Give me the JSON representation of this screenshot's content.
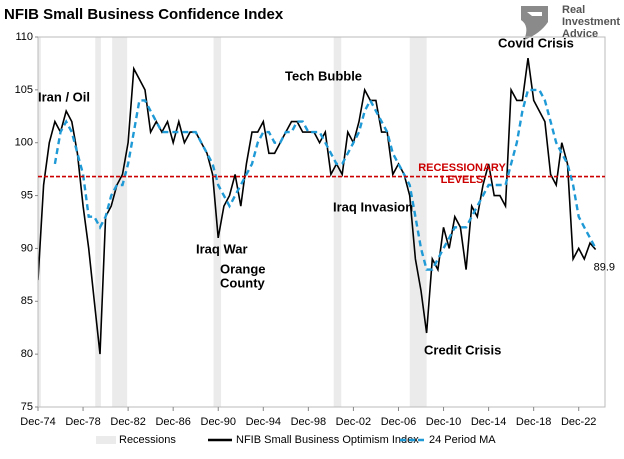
{
  "chart_data": {
    "type": "line",
    "title": "NFIB Small Business Confidence Index",
    "logo": [
      "Real",
      "Investment",
      "Advice"
    ],
    "x": [
      "1974-12",
      "1975-06",
      "1975-12",
      "1976-06",
      "1976-12",
      "1977-06",
      "1977-12",
      "1978-06",
      "1978-12",
      "1979-06",
      "1979-12",
      "1980-06",
      "1980-12",
      "1981-06",
      "1981-12",
      "1982-06",
      "1982-12",
      "1983-06",
      "1983-12",
      "1984-06",
      "1984-12",
      "1985-06",
      "1985-12",
      "1986-06",
      "1986-12",
      "1987-06",
      "1987-12",
      "1988-06",
      "1988-12",
      "1989-06",
      "1989-12",
      "1990-06",
      "1990-12",
      "1991-06",
      "1991-12",
      "1992-06",
      "1992-12",
      "1993-06",
      "1993-12",
      "1994-06",
      "1994-12",
      "1995-06",
      "1995-12",
      "1996-06",
      "1996-12",
      "1997-06",
      "1997-12",
      "1998-06",
      "1998-12",
      "1999-06",
      "1999-12",
      "2000-06",
      "2000-12",
      "2001-06",
      "2001-12",
      "2002-06",
      "2002-12",
      "2003-06",
      "2003-12",
      "2004-06",
      "2004-12",
      "2005-06",
      "2005-12",
      "2006-06",
      "2006-12",
      "2007-06",
      "2007-12",
      "2008-06",
      "2008-12",
      "2009-06",
      "2009-12",
      "2010-06",
      "2010-12",
      "2011-06",
      "2011-12",
      "2012-06",
      "2012-12",
      "2013-06",
      "2013-12",
      "2014-06",
      "2014-12",
      "2015-06",
      "2015-12",
      "2016-06",
      "2016-12",
      "2017-06",
      "2017-12",
      "2018-06",
      "2018-12",
      "2019-06",
      "2019-12",
      "2020-06",
      "2020-12",
      "2021-06",
      "2021-12",
      "2022-06",
      "2022-12",
      "2023-06",
      "2023-12",
      "2024-06"
    ],
    "series": [
      {
        "name": "NFIB Small Business Optimism Index",
        "color": "#000000",
        "dash": false,
        "values": [
          87,
          96,
          100,
          102,
          101,
          103,
          102,
          99,
          94,
          90,
          85,
          80,
          93,
          94,
          96,
          97,
          100,
          107,
          106,
          105,
          101,
          102,
          101,
          102,
          100,
          102,
          100,
          101,
          101,
          100,
          99,
          97,
          91,
          94,
          95,
          97,
          94,
          98,
          101,
          101,
          102,
          99,
          99,
          100,
          101,
          102,
          102,
          101,
          101,
          101,
          100,
          101,
          97,
          98,
          97,
          101,
          100,
          102,
          105,
          104,
          104,
          101,
          101,
          97,
          98,
          97,
          95,
          89,
          86,
          82,
          89,
          88,
          92,
          90,
          93,
          92,
          88,
          94,
          93,
          96,
          98,
          95,
          95,
          94,
          105,
          104,
          104,
          108,
          104,
          103,
          102,
          97,
          96,
          100,
          98,
          89,
          90,
          89,
          90.5,
          89.9
        ],
        "value_labels": {
          "99": "89.9"
        }
      },
      {
        "name": "24 Period MA",
        "color": "#1f9ad6",
        "dash": true,
        "values": [
          null,
          null,
          null,
          98,
          101,
          102,
          101,
          99,
          97,
          93,
          93,
          92,
          93,
          95,
          96,
          96,
          98,
          101,
          104,
          104,
          103,
          102,
          101,
          101,
          101,
          101,
          101,
          101,
          101,
          100,
          99,
          98,
          96,
          95,
          94,
          95,
          96,
          97,
          98,
          100,
          101,
          101,
          100,
          100,
          101,
          101,
          102,
          102,
          101,
          101,
          101,
          100,
          99,
          98,
          98,
          99,
          100,
          101,
          103,
          104,
          103,
          102,
          101,
          99,
          98,
          97,
          96,
          93,
          90,
          88,
          88,
          89,
          90,
          91,
          92,
          92,
          92,
          93,
          94,
          95,
          96,
          96,
          96,
          96,
          98,
          100,
          103,
          105,
          105,
          105,
          104,
          102,
          100,
          99,
          98,
          96,
          93,
          92,
          91,
          90
        ]
      }
    ],
    "recessions": {
      "name": "Recessions",
      "color": "#ebebeb",
      "spans": [
        [
          "1973-11",
          "1975-03"
        ],
        [
          "1980-01",
          "1980-07"
        ],
        [
          "1981-07",
          "1982-11"
        ],
        [
          "1990-07",
          "1991-03"
        ],
        [
          "2001-03",
          "2001-11"
        ],
        [
          "2007-12",
          "2009-06"
        ]
      ]
    },
    "reference_line": {
      "value": 96.8,
      "color": "#cc0000",
      "label": [
        "RECESSIONARY",
        "LEVELS"
      ]
    },
    "annotations": [
      [
        "Iran / Oil"
      ],
      [
        "Tech Bubble"
      ],
      [
        "Iraq War"
      ],
      [
        "Orange",
        "County"
      ],
      [
        "Iraq Invasion"
      ],
      [
        "Credit Crisis"
      ],
      [
        "Covid Crisis"
      ]
    ],
    "xlim": [
      "1974-12",
      "2025-04"
    ],
    "xticks": [
      {
        "value": "1974-12",
        "label": "Dec-74"
      },
      {
        "value": "1978-12",
        "label": "Dec-78"
      },
      {
        "value": "1982-12",
        "label": "Dec-82"
      },
      {
        "value": "1986-12",
        "label": "Dec-86"
      },
      {
        "value": "1990-12",
        "label": "Dec-90"
      },
      {
        "value": "1994-12",
        "label": "Dec-94"
      },
      {
        "value": "1998-12",
        "label": "Dec-98"
      },
      {
        "value": "2002-12",
        "label": "Dec-02"
      },
      {
        "value": "2006-12",
        "label": "Dec-06"
      },
      {
        "value": "2010-12",
        "label": "Dec-10"
      },
      {
        "value": "2014-12",
        "label": "Dec-14"
      },
      {
        "value": "2018-12",
        "label": "Dec-18"
      },
      {
        "value": "2022-12",
        "label": "Dec-22"
      }
    ],
    "ylim": [
      75,
      110
    ],
    "yticks": [
      75,
      80,
      85,
      90,
      95,
      100,
      105,
      110
    ],
    "grid": false,
    "legend": "bottom"
  }
}
